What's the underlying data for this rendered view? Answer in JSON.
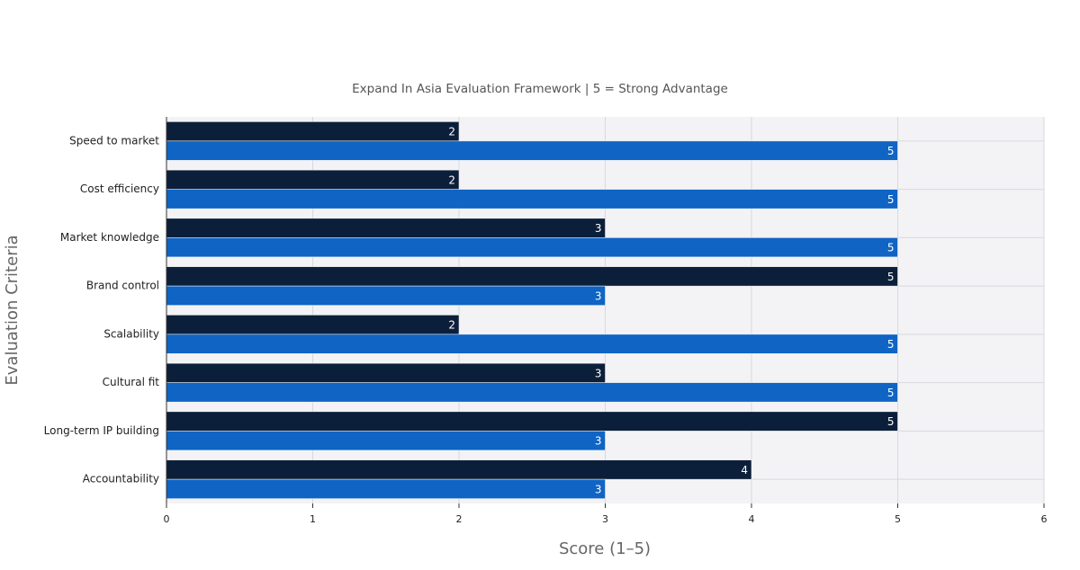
{
  "chart_data": {
    "type": "bar",
    "orientation": "horizontal",
    "title": "Expand In Asia Evaluation Framework | 5 = Strong Advantage",
    "x_label": "Score (1–5)",
    "y_label": "Evaluation Criteria",
    "categories": [
      "Speed to market",
      "Cost efficiency",
      "Market knowledge",
      "Brand control",
      "Scalability",
      "Cultural fit",
      "Long-term IP building",
      "Accountability"
    ],
    "series": [
      {
        "color": "#0c1f3a",
        "values": [
          2,
          2,
          3,
          5,
          2,
          3,
          5,
          4
        ]
      },
      {
        "color": "#0f64c4",
        "values": [
          5,
          5,
          5,
          3,
          5,
          5,
          3,
          3
        ]
      }
    ],
    "xlim": [
      0,
      6
    ],
    "xticks": [
      0,
      1,
      2,
      3,
      4,
      5,
      6
    ],
    "grid": true
  }
}
